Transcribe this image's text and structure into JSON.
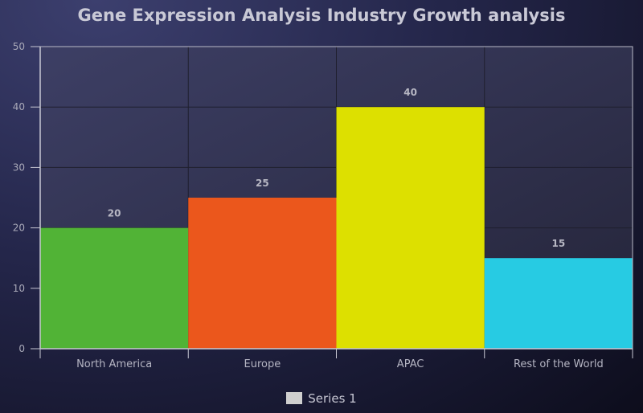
{
  "chart_data": {
    "type": "bar",
    "title": "Gene Expression Analysis Industry Growth analysis",
    "categories": [
      "North America",
      "Europe",
      "APAC",
      "Rest of the World"
    ],
    "series": [
      {
        "name": "Series 1",
        "values": [
          20,
          25,
          40,
          15
        ]
      }
    ],
    "bar_colors": [
      "#51b336",
      "#eb571c",
      "#dde000",
      "#27cbe3"
    ],
    "data_labels": [
      "20",
      "25",
      "40",
      "15"
    ],
    "ylim": [
      0,
      50
    ],
    "y_ticks": [
      0,
      10,
      20,
      30,
      40,
      50
    ],
    "xlabel": "",
    "ylabel": "",
    "grid": true,
    "legend": {
      "position": "bottom",
      "swatch_color": "#cfcfcf"
    }
  }
}
